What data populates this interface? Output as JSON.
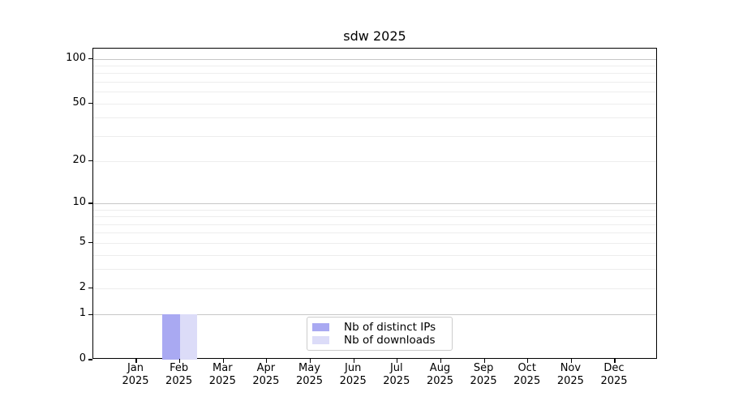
{
  "chart_data": {
    "type": "bar",
    "title": "sdw 2025",
    "categories": [
      "Jan 2025",
      "Feb 2025",
      "Mar 2025",
      "Apr 2025",
      "May 2025",
      "Jun 2025",
      "Jul 2025",
      "Aug 2025",
      "Sep 2025",
      "Oct 2025",
      "Nov 2025",
      "Dec 2025"
    ],
    "months": [
      "Jan",
      "Feb",
      "Mar",
      "Apr",
      "May",
      "Jun",
      "Jul",
      "Aug",
      "Sep",
      "Oct",
      "Nov",
      "Dec"
    ],
    "year_line": "2025",
    "series": [
      {
        "name": "Nb of distinct IPs",
        "color": "#a9a9f2",
        "values": [
          0,
          1,
          0,
          0,
          0,
          0,
          0,
          0,
          0,
          0,
          0,
          0
        ]
      },
      {
        "name": "Nb of downloads",
        "color": "#dcdcf8",
        "values": [
          0,
          1,
          0,
          0,
          0,
          0,
          0,
          0,
          0,
          0,
          0,
          0
        ]
      }
    ],
    "xlabel": "",
    "ylabel": "",
    "y_axis": {
      "scale": "log10(1+v)",
      "ticks": [
        0,
        1,
        2,
        5,
        10,
        20,
        50,
        100
      ],
      "major_gridlines": [
        1,
        10,
        100
      ],
      "minor_gridlines": [
        2,
        3,
        4,
        5,
        6,
        7,
        8,
        9,
        20,
        30,
        40,
        50,
        60,
        70,
        80,
        90
      ],
      "ylim": [
        0,
        117
      ]
    },
    "legend": {
      "position": "lower center",
      "entries": [
        "Nb of distinct IPs",
        "Nb of downloads"
      ]
    }
  }
}
